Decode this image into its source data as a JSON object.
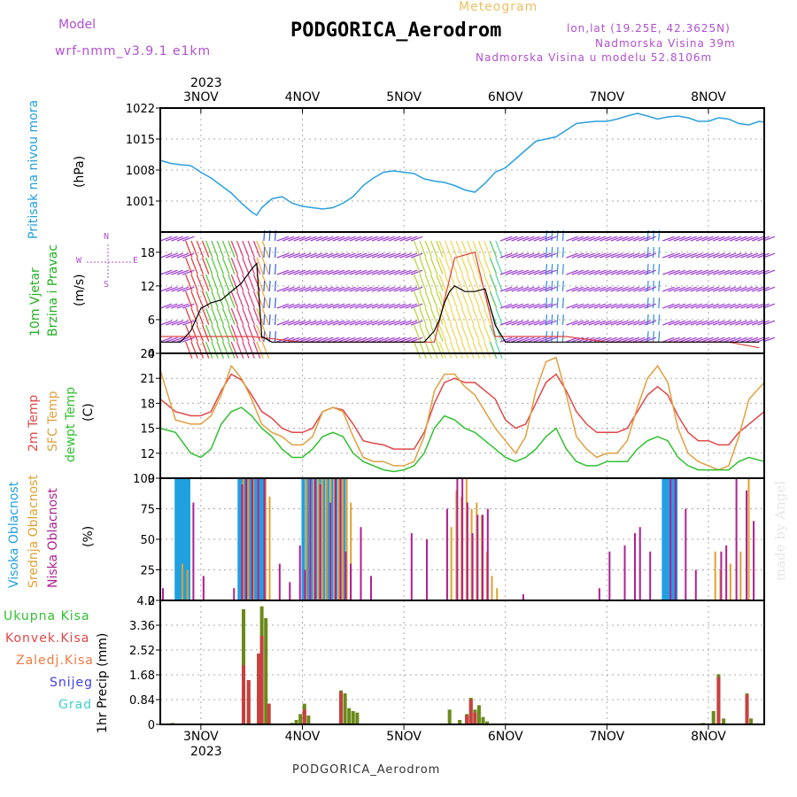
{
  "header": {
    "model_label": "Model",
    "model_name": "wrf-nmm_v3.9.1 e1km",
    "chart_kind": "Meteogram",
    "station": "PODGORICA_Aerodrom",
    "lonlat": "lon,lat (19.25E, 42.3625N)",
    "elevation": "Nadmorska Visina 39m",
    "model_elevation": "Nadmorska Visina u modelu 52.8106m",
    "year": "2023",
    "footer_station": "PODGORICA_Aerodrom",
    "watermark": "made by Angel"
  },
  "chart_data": [
    {
      "type": "line",
      "panel": "pressure",
      "ylabel": "Pritisak na nivou mora",
      "unit": "(hPa)",
      "x_ticks": [
        "3NOV",
        "4NOV",
        "5NOV",
        "6NOV",
        "7NOV",
        "8NOV"
      ],
      "ylim": [
        994,
        1022
      ],
      "y_ticks": [
        "1001",
        "1008",
        "1015",
        "1022"
      ],
      "x_range_days": [
        2.6,
        8.55
      ],
      "color": "#2aa0e0",
      "series": [
        {
          "x": [
            2.6,
            2.7,
            2.8,
            2.9,
            3.0,
            3.1,
            3.2,
            3.3,
            3.4,
            3.5,
            3.55,
            3.6,
            3.7,
            3.8,
            3.9,
            4.0,
            4.1,
            4.2,
            4.3,
            4.4,
            4.5,
            4.6,
            4.7,
            4.8,
            4.9,
            5.0,
            5.1,
            5.2,
            5.3,
            5.4,
            5.5,
            5.6,
            5.7,
            5.8,
            5.9,
            6.0,
            6.1,
            6.2,
            6.3,
            6.4,
            6.5,
            6.6,
            6.7,
            6.8,
            6.9,
            7.0,
            7.1,
            7.2,
            7.3,
            7.4,
            7.5,
            7.6,
            7.7,
            7.8,
            7.9,
            8.0,
            8.1,
            8.2,
            8.3,
            8.4,
            8.5,
            8.55
          ],
          "values": [
            1010.2,
            1009.5,
            1009.2,
            1009.0,
            1007.5,
            1006.2,
            1004.5,
            1002.8,
            1000.5,
            998.5,
            997.8,
            999.5,
            1001.5,
            1002.0,
            1000.5,
            999.8,
            999.5,
            999.2,
            999.5,
            1000.5,
            1002.0,
            1004.5,
            1006.2,
            1007.5,
            1007.8,
            1007.5,
            1007.2,
            1006.0,
            1005.5,
            1005.2,
            1004.5,
            1003.5,
            1003.0,
            1005.0,
            1007.5,
            1008.5,
            1010.5,
            1012.5,
            1014.5,
            1015.0,
            1015.5,
            1017.0,
            1018.5,
            1018.8,
            1019.0,
            1019.0,
            1019.5,
            1020.2,
            1020.8,
            1020.2,
            1019.5,
            1020.0,
            1020.2,
            1019.8,
            1019.0,
            1019.0,
            1019.8,
            1019.5,
            1018.5,
            1018.2,
            1019.0,
            1018.8
          ]
        }
      ]
    },
    {
      "type": "line",
      "panel": "wind",
      "ylabel": "10m Vjetar Brzina i Pravac",
      "unit": "(m/s)",
      "compass": {
        "north": "N",
        "west": "W",
        "east": "E",
        "south": "S"
      },
      "ylim": [
        0,
        21.6
      ],
      "y_ticks": [
        "0",
        "6",
        "12",
        "18"
      ],
      "series": [
        {
          "name": "speed",
          "color": "#000000",
          "x": [
            2.6,
            2.8,
            2.9,
            3.0,
            3.1,
            3.2,
            3.3,
            3.4,
            3.5,
            3.55,
            3.6,
            3.7,
            3.9,
            4.1,
            4.5,
            4.9,
            5.2,
            5.3,
            5.35,
            5.4,
            5.45,
            5.5,
            5.6,
            5.7,
            5.8,
            5.9,
            6.0,
            6.5,
            7.0,
            7.5,
            8.0,
            8.5
          ],
          "values": [
            2,
            2,
            4,
            8,
            9,
            9.5,
            11,
            12.5,
            15,
            16,
            3,
            2,
            2,
            2,
            2,
            2,
            2,
            4,
            6,
            9,
            11,
            12,
            11,
            11,
            11.5,
            5,
            2,
            2,
            2,
            2,
            2,
            2
          ]
        },
        {
          "name": "gust",
          "color": "#e04040",
          "x": [
            2.6,
            3.0,
            3.5,
            4.0,
            4.5,
            5.0,
            5.3,
            5.5,
            5.7,
            5.9,
            6.2,
            6.6,
            7.0,
            7.4,
            7.8,
            8.2,
            8.5
          ],
          "values": [
            3,
            3,
            3,
            2,
            2,
            2,
            2,
            17,
            18,
            3,
            3,
            3,
            2,
            2,
            2,
            2,
            1
          ]
        }
      ]
    },
    {
      "type": "line",
      "panel": "temperature",
      "ylabel_lines": [
        "2m Temp",
        "SFC Temp",
        "dewpt Temp"
      ],
      "unit": "(C)",
      "ylim": [
        9,
        24
      ],
      "y_ticks": [
        "9",
        "12",
        "15",
        "18",
        "21",
        "24"
      ],
      "series": [
        {
          "name": "2m Temp",
          "color": "#e04848",
          "x": [
            2.6,
            2.75,
            2.9,
            3.0,
            3.1,
            3.2,
            3.3,
            3.4,
            3.5,
            3.6,
            3.7,
            3.8,
            3.9,
            4.0,
            4.1,
            4.2,
            4.3,
            4.4,
            4.5,
            4.6,
            4.7,
            4.8,
            4.9,
            5.0,
            5.1,
            5.2,
            5.3,
            5.4,
            5.5,
            5.6,
            5.7,
            5.8,
            5.9,
            6.0,
            6.1,
            6.2,
            6.3,
            6.4,
            6.5,
            6.6,
            6.7,
            6.8,
            6.9,
            7.0,
            7.1,
            7.2,
            7.3,
            7.4,
            7.5,
            7.6,
            7.7,
            7.8,
            7.9,
            8.0,
            8.1,
            8.2,
            8.3,
            8.4,
            8.55
          ],
          "values": [
            18.5,
            17.0,
            16.5,
            16.5,
            17.0,
            19.5,
            21.5,
            20.8,
            19.0,
            17.0,
            16.2,
            15.0,
            14.5,
            14.5,
            15.0,
            17.0,
            17.5,
            17.2,
            15.5,
            13.5,
            13.2,
            13.0,
            12.5,
            12.5,
            12.5,
            14.5,
            18.0,
            20.5,
            21.0,
            20.5,
            20.5,
            19.5,
            18.5,
            16.0,
            15.0,
            15.5,
            18.0,
            20.5,
            21.5,
            19.5,
            17.0,
            15.5,
            14.5,
            14.5,
            14.5,
            15.0,
            17.0,
            19.0,
            20.0,
            19.0,
            16.5,
            14.5,
            13.5,
            13.5,
            13.0,
            13.0,
            14.5,
            15.5,
            17.0
          ]
        },
        {
          "name": "SFC Temp",
          "color": "#e0a040",
          "x": [
            2.6,
            2.75,
            2.9,
            3.0,
            3.1,
            3.2,
            3.3,
            3.4,
            3.5,
            3.6,
            3.7,
            3.8,
            3.9,
            4.0,
            4.1,
            4.2,
            4.3,
            4.4,
            4.5,
            4.6,
            4.7,
            4.8,
            4.9,
            5.0,
            5.1,
            5.2,
            5.3,
            5.4,
            5.5,
            5.6,
            5.7,
            5.8,
            5.9,
            6.0,
            6.1,
            6.2,
            6.3,
            6.4,
            6.5,
            6.6,
            6.7,
            6.8,
            6.9,
            7.0,
            7.1,
            7.2,
            7.3,
            7.4,
            7.5,
            7.6,
            7.7,
            7.8,
            7.9,
            8.0,
            8.1,
            8.2,
            8.3,
            8.4,
            8.55
          ],
          "values": [
            22.0,
            16.0,
            15.5,
            15.5,
            16.5,
            19.0,
            22.5,
            21.0,
            18.5,
            15.5,
            14.5,
            14.0,
            13.0,
            13.0,
            14.0,
            17.0,
            17.5,
            17.0,
            14.0,
            11.5,
            11.0,
            11.0,
            10.5,
            10.5,
            11.0,
            14.0,
            19.5,
            21.5,
            21.5,
            20.0,
            19.0,
            17.0,
            15.0,
            13.5,
            12.0,
            14.0,
            19.5,
            23.0,
            23.5,
            19.0,
            14.0,
            12.5,
            11.5,
            12.0,
            12.0,
            13.5,
            17.5,
            21.0,
            22.5,
            20.5,
            15.0,
            12.0,
            11.0,
            10.5,
            10.0,
            10.5,
            14.0,
            18.5,
            20.5
          ]
        },
        {
          "name": "dewpt Temp",
          "color": "#30c030",
          "x": [
            2.6,
            2.75,
            2.9,
            3.0,
            3.1,
            3.2,
            3.3,
            3.4,
            3.5,
            3.6,
            3.7,
            3.8,
            3.9,
            4.0,
            4.1,
            4.2,
            4.3,
            4.4,
            4.5,
            4.6,
            4.7,
            4.8,
            4.9,
            5.0,
            5.1,
            5.2,
            5.3,
            5.4,
            5.5,
            5.6,
            5.7,
            5.8,
            5.9,
            6.0,
            6.1,
            6.2,
            6.3,
            6.4,
            6.5,
            6.6,
            6.7,
            6.8,
            6.9,
            7.0,
            7.1,
            7.2,
            7.3,
            7.4,
            7.5,
            7.6,
            7.7,
            7.8,
            7.9,
            8.0,
            8.1,
            8.2,
            8.3,
            8.4,
            8.55
          ],
          "values": [
            15.0,
            14.5,
            12.0,
            11.5,
            12.5,
            15.5,
            17.0,
            17.5,
            16.5,
            15.0,
            14.0,
            12.5,
            11.5,
            11.5,
            12.5,
            14.0,
            14.5,
            14.0,
            12.0,
            11.0,
            10.5,
            10.0,
            9.8,
            10.0,
            10.5,
            12.0,
            15.0,
            16.5,
            16.0,
            15.0,
            14.5,
            13.5,
            12.5,
            11.5,
            11.0,
            11.5,
            12.5,
            14.0,
            15.0,
            12.5,
            11.0,
            10.5,
            10.5,
            11.0,
            11.0,
            11.0,
            12.5,
            13.5,
            14.0,
            13.5,
            11.5,
            10.5,
            10.0,
            10.0,
            10.0,
            10.0,
            11.0,
            11.5,
            11.0
          ]
        }
      ]
    },
    {
      "type": "bar",
      "panel": "cloud",
      "ylabel_lines": [
        "Visoka Oblacnost",
        "Srednja Oblacnost",
        "Niska Oblacnost"
      ],
      "unit": "(%)",
      "ylim": [
        0,
        100
      ],
      "y_ticks": [
        "0",
        "25",
        "50",
        "75",
        "100"
      ],
      "series": [
        {
          "name": "Visoka Oblacnost",
          "color": "#20a0e0",
          "x": [
            2.75,
            2.78,
            2.81,
            2.84,
            2.87,
            3.37,
            3.4,
            3.43,
            3.46,
            3.49,
            3.52,
            3.55,
            3.58,
            3.61,
            4.0,
            4.04,
            4.08,
            4.12,
            4.16,
            4.2,
            4.24,
            4.28,
            4.32,
            4.36,
            4.4,
            7.55,
            7.58,
            7.61,
            7.64,
            7.67
          ],
          "values": [
            100,
            100,
            100,
            100,
            100,
            100,
            100,
            100,
            100,
            100,
            100,
            100,
            100,
            100,
            100,
            100,
            100,
            100,
            100,
            100,
            100,
            100,
            100,
            100,
            100,
            100,
            100,
            100,
            100,
            100
          ]
        },
        {
          "name": "Srednja Oblacnost",
          "color": "#e0a030",
          "x": [
            2.8,
            2.85,
            3.4,
            3.45,
            3.5,
            3.55,
            3.62,
            3.66,
            4.02,
            4.06,
            4.1,
            4.14,
            4.18,
            4.22,
            4.26,
            4.3,
            4.34,
            4.38,
            4.42,
            4.46,
            5.45,
            5.5,
            5.55,
            5.6,
            5.65,
            5.7,
            5.75,
            5.8,
            5.85,
            5.9,
            8.05,
            8.1,
            8.2,
            8.3,
            8.38
          ],
          "values": [
            30,
            25,
            100,
            100,
            100,
            100,
            100,
            85,
            100,
            95,
            100,
            100,
            100,
            100,
            100,
            100,
            100,
            100,
            100,
            80,
            60,
            90,
            85,
            100,
            75,
            80,
            70,
            40,
            20,
            10,
            40,
            25,
            30,
            40,
            100
          ]
        },
        {
          "name": "Niska Oblacnost",
          "color": "#b02090",
          "x": [
            2.6,
            2.9,
            3.0,
            3.3,
            3.38,
            3.42,
            3.48,
            3.54,
            3.6,
            3.75,
            3.85,
            3.95,
            4.0,
            4.05,
            4.1,
            4.15,
            4.25,
            4.3,
            4.35,
            4.4,
            4.45,
            4.55,
            4.65,
            5.05,
            5.2,
            5.4,
            5.5,
            5.55,
            5.6,
            5.65,
            5.7,
            5.75,
            5.8,
            6.15,
            6.9,
            7.0,
            7.15,
            7.25,
            7.3,
            7.4,
            7.6,
            7.65,
            7.75,
            7.85,
            8.1,
            8.15,
            8.25,
            8.35,
            8.42
          ],
          "values": [
            10,
            80,
            20,
            10,
            95,
            100,
            100,
            100,
            100,
            30,
            15,
            45,
            25,
            100,
            100,
            95,
            80,
            100,
            100,
            40,
            30,
            60,
            20,
            55,
            50,
            75,
            100,
            100,
            80,
            55,
            70,
            70,
            75,
            5,
            10,
            40,
            45,
            55,
            60,
            40,
            100,
            100,
            75,
            25,
            40,
            45,
            100,
            90,
            65
          ]
        }
      ]
    },
    {
      "type": "bar",
      "panel": "precip",
      "ylabel": "1hr Precip (mm)",
      "legend": [
        "Ukupna Kisa",
        "Konvek.Kisa",
        "Zaledj.Kisa",
        "Snijeg",
        "Grad"
      ],
      "legend_colors": [
        "#30c030",
        "#e04848",
        "#f07840",
        "#4040e0",
        "#40d0d0"
      ],
      "ylim": [
        0,
        4.2
      ],
      "y_ticks": [
        "0",
        "0.84",
        "1.68",
        "2.52",
        "3.36",
        "4.2"
      ],
      "x_ticks_bottom": [
        "3NOV",
        "4NOV",
        "5NOV",
        "6NOV",
        "7NOV",
        "8NOV"
      ],
      "series": [
        {
          "name": "Ukupna Kisa",
          "color": "#6a8a1a",
          "x": [
            2.72,
            3.42,
            3.47,
            3.57,
            3.6,
            3.64,
            3.67,
            3.9,
            3.94,
            3.98,
            4.02,
            4.06,
            4.38,
            4.42,
            4.46,
            4.5,
            4.54,
            5.45,
            5.55,
            5.62,
            5.66,
            5.7,
            5.74,
            5.78,
            5.82,
            7.95,
            8.05,
            8.1,
            8.15,
            8.38,
            8.42
          ],
          "values": [
            0.05,
            3.9,
            1.5,
            2.4,
            4.0,
            3.6,
            0.7,
            0.05,
            0.15,
            0.35,
            0.7,
            0.3,
            1.15,
            1.05,
            0.55,
            0.45,
            0.4,
            0.5,
            0.15,
            0.35,
            0.9,
            0.5,
            0.65,
            0.25,
            0.1,
            0.05,
            0.45,
            1.7,
            0.2,
            1.05,
            0.2
          ]
        },
        {
          "name": "Konvek.Kisa",
          "color": "#c84040",
          "x": [
            3.42,
            3.47,
            3.57,
            3.6,
            3.67,
            4.02,
            4.38,
            5.62,
            5.66,
            5.7,
            8.1,
            8.38
          ],
          "values": [
            2.0,
            1.5,
            2.4,
            3.0,
            0.7,
            0.5,
            1.1,
            0.3,
            0.85,
            0.4,
            1.6,
            1.0
          ]
        }
      ]
    }
  ]
}
